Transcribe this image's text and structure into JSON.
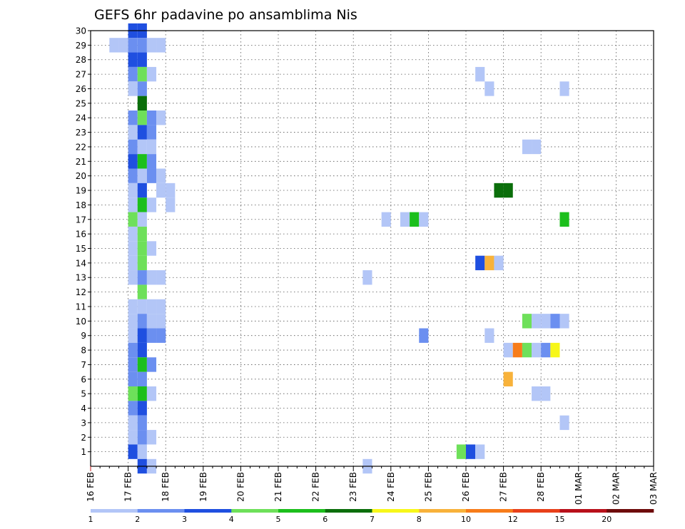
{
  "chart_data": {
    "type": "heatmap",
    "title": "GEFS 6hr padavine po ansamblima Nis",
    "x_tick_labels": [
      "16 FEB",
      "17 FEB",
      "18 FEB",
      "19 FEB",
      "20 FEB",
      "21 FEB",
      "22 FEB",
      "23 FEB",
      "24 FEB",
      "25 FEB",
      "26 FEB",
      "27 FEB",
      "28 FEB",
      "01 MAR",
      "02 MAR",
      "03 MAR"
    ],
    "x_range_steps": [
      0,
      60
    ],
    "y_tick_labels": [
      "1",
      "2",
      "3",
      "4",
      "5",
      "6",
      "7",
      "8",
      "9",
      "10",
      "11",
      "12",
      "13",
      "14",
      "15",
      "16",
      "17",
      "18",
      "19",
      "20",
      "21",
      "22",
      "23",
      "24",
      "25",
      "26",
      "27",
      "28",
      "29",
      "30"
    ],
    "y_range": [
      0,
      30
    ],
    "grid": true,
    "colorbar": {
      "labels": [
        "1",
        "2",
        "3",
        "4",
        "5",
        "6",
        "7",
        "8",
        "10",
        "12",
        "15",
        "20"
      ],
      "colors": [
        "#b3c6f7",
        "#6b8ff0",
        "#1f4fe0",
        "#6ee05a",
        "#1cbf1c",
        "#0a6e0a",
        "#f7f71a",
        "#f8b23a",
        "#f77c1a",
        "#e8401a",
        "#b8101a",
        "#6e0a0a"
      ]
    },
    "cells": [
      {
        "step": 4,
        "member": 30,
        "value": 3
      },
      {
        "step": 5,
        "member": 30,
        "value": 3
      },
      {
        "step": 2,
        "member": 29,
        "value": 1
      },
      {
        "step": 3,
        "member": 29,
        "value": 1
      },
      {
        "step": 4,
        "member": 29,
        "value": 2
      },
      {
        "step": 5,
        "member": 29,
        "value": 2
      },
      {
        "step": 6,
        "member": 29,
        "value": 1
      },
      {
        "step": 7,
        "member": 29,
        "value": 1
      },
      {
        "step": 4,
        "member": 28,
        "value": 3
      },
      {
        "step": 5,
        "member": 28,
        "value": 3
      },
      {
        "step": 4,
        "member": 27,
        "value": 2
      },
      {
        "step": 5,
        "member": 27,
        "value": 4
      },
      {
        "step": 6,
        "member": 27,
        "value": 1
      },
      {
        "step": 4,
        "member": 26,
        "value": 1
      },
      {
        "step": 5,
        "member": 26,
        "value": 2
      },
      {
        "step": 5,
        "member": 25,
        "value": 6
      },
      {
        "step": 4,
        "member": 24,
        "value": 2
      },
      {
        "step": 5,
        "member": 24,
        "value": 4
      },
      {
        "step": 6,
        "member": 24,
        "value": 2
      },
      {
        "step": 7,
        "member": 24,
        "value": 1
      },
      {
        "step": 4,
        "member": 23,
        "value": 1
      },
      {
        "step": 5,
        "member": 23,
        "value": 3
      },
      {
        "step": 6,
        "member": 23,
        "value": 2
      },
      {
        "step": 4,
        "member": 22,
        "value": 2
      },
      {
        "step": 5,
        "member": 22,
        "value": 1
      },
      {
        "step": 6,
        "member": 22,
        "value": 1
      },
      {
        "step": 4,
        "member": 21,
        "value": 3
      },
      {
        "step": 5,
        "member": 21,
        "value": 5
      },
      {
        "step": 6,
        "member": 21,
        "value": 2
      },
      {
        "step": 4,
        "member": 20,
        "value": 2
      },
      {
        "step": 5,
        "member": 20,
        "value": 1
      },
      {
        "step": 6,
        "member": 20,
        "value": 2
      },
      {
        "step": 7,
        "member": 20,
        "value": 1
      },
      {
        "step": 4,
        "member": 19,
        "value": 1
      },
      {
        "step": 5,
        "member": 19,
        "value": 3
      },
      {
        "step": 7,
        "member": 19,
        "value": 1
      },
      {
        "step": 8,
        "member": 19,
        "value": 1
      },
      {
        "step": 4,
        "member": 18,
        "value": 1
      },
      {
        "step": 5,
        "member": 18,
        "value": 5
      },
      {
        "step": 6,
        "member": 18,
        "value": 1
      },
      {
        "step": 8,
        "member": 18,
        "value": 1
      },
      {
        "step": 4,
        "member": 17,
        "value": 4
      },
      {
        "step": 5,
        "member": 17,
        "value": 1
      },
      {
        "step": 4,
        "member": 16,
        "value": 1
      },
      {
        "step": 5,
        "member": 16,
        "value": 4
      },
      {
        "step": 4,
        "member": 15,
        "value": 1
      },
      {
        "step": 5,
        "member": 15,
        "value": 4
      },
      {
        "step": 6,
        "member": 15,
        "value": 1
      },
      {
        "step": 4,
        "member": 14,
        "value": 1
      },
      {
        "step": 5,
        "member": 14,
        "value": 4
      },
      {
        "step": 4,
        "member": 13,
        "value": 1
      },
      {
        "step": 5,
        "member": 13,
        "value": 2
      },
      {
        "step": 6,
        "member": 13,
        "value": 1
      },
      {
        "step": 7,
        "member": 13,
        "value": 1
      },
      {
        "step": 5,
        "member": 12,
        "value": 4
      },
      {
        "step": 4,
        "member": 11,
        "value": 1
      },
      {
        "step": 5,
        "member": 11,
        "value": 1
      },
      {
        "step": 6,
        "member": 11,
        "value": 1
      },
      {
        "step": 7,
        "member": 11,
        "value": 1
      },
      {
        "step": 4,
        "member": 10,
        "value": 1
      },
      {
        "step": 5,
        "member": 10,
        "value": 2
      },
      {
        "step": 6,
        "member": 10,
        "value": 1
      },
      {
        "step": 7,
        "member": 10,
        "value": 1
      },
      {
        "step": 4,
        "member": 9,
        "value": 1
      },
      {
        "step": 5,
        "member": 9,
        "value": 3
      },
      {
        "step": 6,
        "member": 9,
        "value": 2
      },
      {
        "step": 7,
        "member": 9,
        "value": 2
      },
      {
        "step": 4,
        "member": 8,
        "value": 2
      },
      {
        "step": 5,
        "member": 8,
        "value": 3
      },
      {
        "step": 4,
        "member": 7,
        "value": 2
      },
      {
        "step": 5,
        "member": 7,
        "value": 5
      },
      {
        "step": 6,
        "member": 7,
        "value": 2
      },
      {
        "step": 4,
        "member": 6,
        "value": 2
      },
      {
        "step": 5,
        "member": 6,
        "value": 2
      },
      {
        "step": 4,
        "member": 5,
        "value": 4
      },
      {
        "step": 5,
        "member": 5,
        "value": 5
      },
      {
        "step": 6,
        "member": 5,
        "value": 1
      },
      {
        "step": 4,
        "member": 4,
        "value": 2
      },
      {
        "step": 5,
        "member": 4,
        "value": 3
      },
      {
        "step": 4,
        "member": 3,
        "value": 1
      },
      {
        "step": 5,
        "member": 3,
        "value": 2
      },
      {
        "step": 4,
        "member": 2,
        "value": 1
      },
      {
        "step": 5,
        "member": 2,
        "value": 2
      },
      {
        "step": 6,
        "member": 2,
        "value": 1
      },
      {
        "step": 4,
        "member": 1,
        "value": 3
      },
      {
        "step": 5,
        "member": 1,
        "value": 1
      },
      {
        "step": 5,
        "member": 0,
        "value": 3
      },
      {
        "step": 6,
        "member": 0,
        "value": 1
      },
      {
        "step": 29,
        "member": 0,
        "value": 1
      },
      {
        "step": 29,
        "member": 13,
        "value": 1
      },
      {
        "step": 31,
        "member": 17,
        "value": 1
      },
      {
        "step": 33,
        "member": 17,
        "value": 1
      },
      {
        "step": 34,
        "member": 17,
        "value": 5
      },
      {
        "step": 35,
        "member": 17,
        "value": 1
      },
      {
        "step": 35,
        "member": 9,
        "value": 2
      },
      {
        "step": 39,
        "member": 1,
        "value": 4
      },
      {
        "step": 40,
        "member": 1,
        "value": 3
      },
      {
        "step": 41,
        "member": 1,
        "value": 1
      },
      {
        "step": 41,
        "member": 27,
        "value": 1
      },
      {
        "step": 42,
        "member": 26,
        "value": 1
      },
      {
        "step": 41,
        "member": 14,
        "value": 3
      },
      {
        "step": 42,
        "member": 14,
        "value": 8
      },
      {
        "step": 43,
        "member": 14,
        "value": 1
      },
      {
        "step": 42,
        "member": 9,
        "value": 1
      },
      {
        "step": 43,
        "member": 19,
        "value": 6
      },
      {
        "step": 44,
        "member": 19,
        "value": 6
      },
      {
        "step": 44,
        "member": 8,
        "value": 1
      },
      {
        "step": 45,
        "member": 8,
        "value": 10
      },
      {
        "step": 46,
        "member": 8,
        "value": 4
      },
      {
        "step": 47,
        "member": 8,
        "value": 1
      },
      {
        "step": 48,
        "member": 8,
        "value": 2
      },
      {
        "step": 49,
        "member": 8,
        "value": 7
      },
      {
        "step": 44,
        "member": 6,
        "value": 8
      },
      {
        "step": 46,
        "member": 10,
        "value": 4
      },
      {
        "step": 47,
        "member": 10,
        "value": 1
      },
      {
        "step": 48,
        "member": 10,
        "value": 1
      },
      {
        "step": 49,
        "member": 10,
        "value": 2
      },
      {
        "step": 50,
        "member": 10,
        "value": 1
      },
      {
        "step": 46,
        "member": 22,
        "value": 1
      },
      {
        "step": 47,
        "member": 22,
        "value": 1
      },
      {
        "step": 47,
        "member": 5,
        "value": 1
      },
      {
        "step": 48,
        "member": 5,
        "value": 1
      },
      {
        "step": 50,
        "member": 26,
        "value": 1
      },
      {
        "step": 50,
        "member": 17,
        "value": 5
      },
      {
        "step": 50,
        "member": 3,
        "value": 1
      }
    ]
  }
}
